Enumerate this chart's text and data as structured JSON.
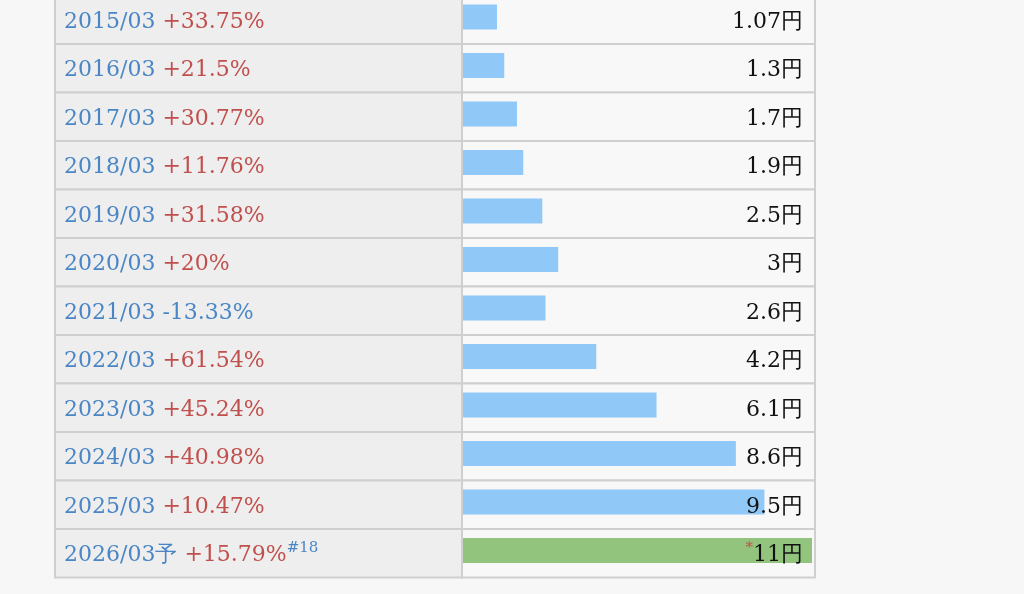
{
  "chart_data": {
    "type": "bar",
    "orientation": "horizontal",
    "categories": [
      "2015/03 +33.75%",
      "2016/03 +21.5%",
      "2017/03 +30.77%",
      "2018/03 +11.76%",
      "2019/03 +31.58%",
      "2020/03 +20%",
      "2021/03 -13.33%",
      "2022/03 +61.54%",
      "2023/03 +45.24%",
      "2024/03 +40.98%",
      "2025/03 +10.47%",
      "2026/03予 +15.79%$^{#18}$"
    ],
    "values": [
      1.07,
      1.3,
      1.7,
      1.9,
      2.5,
      3,
      2.6,
      4.2,
      6.1,
      8.6,
      9.5,
      11
    ],
    "colors": [
      "#90c8f8",
      "#90c8f8",
      "#90c8f8",
      "#90c8f8",
      "#90c8f8",
      "#90c8f8",
      "#90c8f8",
      "#90c8f8",
      "#90c8f8",
      "#90c8f8",
      "#90c8f8",
      "#93c47d"
    ],
    "value_labels": [
      "1.07円",
      "1.3円",
      "1.7円",
      "1.9円",
      "2.5円",
      "3円",
      "2.6円",
      "4.2円",
      "6.1円",
      "8.6円",
      "9.5円",
      "$^{*}$11円"
    ],
    "xlim": [
      0,
      11
    ]
  }
}
